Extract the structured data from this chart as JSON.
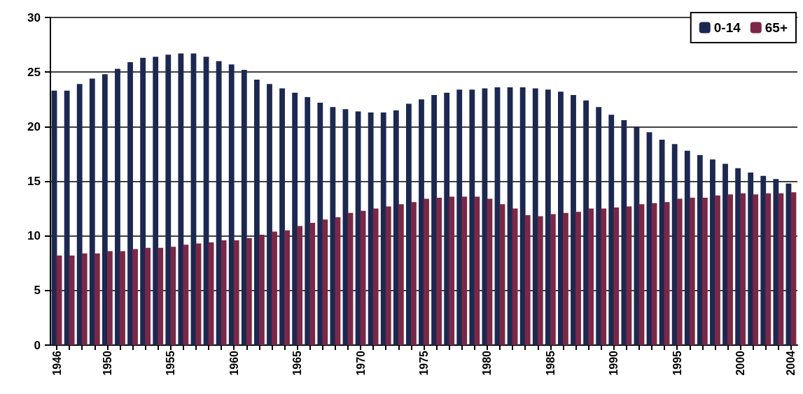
{
  "chart_data": {
    "type": "bar",
    "categories": [
      "1946",
      null,
      null,
      null,
      "1950",
      null,
      null,
      null,
      null,
      "1955",
      null,
      null,
      null,
      null,
      "1960",
      null,
      null,
      null,
      null,
      "1965",
      null,
      null,
      null,
      null,
      "1970",
      null,
      null,
      null,
      null,
      "1975",
      null,
      null,
      null,
      null,
      "1980",
      null,
      null,
      null,
      null,
      "1985",
      null,
      null,
      null,
      null,
      "1990",
      null,
      null,
      null,
      null,
      "1995",
      null,
      null,
      null,
      null,
      "2000",
      null,
      null,
      null,
      "2004"
    ],
    "series": [
      {
        "name": "0-14",
        "color": "#1c2850",
        "values": [
          23.3,
          23.3,
          23.9,
          24.4,
          24.8,
          25.3,
          25.9,
          26.3,
          26.4,
          26.6,
          26.7,
          26.7,
          26.4,
          26.0,
          25.7,
          25.2,
          24.3,
          23.9,
          23.5,
          23.1,
          22.7,
          22.2,
          21.8,
          21.6,
          21.4,
          21.3,
          21.3,
          21.5,
          22.1,
          22.5,
          22.9,
          23.1,
          23.4,
          23.4,
          23.5,
          23.6,
          23.6,
          23.6,
          23.5,
          23.4,
          23.2,
          22.9,
          22.4,
          21.8,
          21.1,
          20.6,
          20.0,
          19.5,
          18.8,
          18.4,
          17.8,
          17.4,
          17.0,
          16.6,
          16.2,
          15.8,
          15.5,
          15.2,
          14.8
        ]
      },
      {
        "name": "65+",
        "color": "#7a2848",
        "values": [
          8.2,
          8.2,
          8.4,
          8.4,
          8.6,
          8.6,
          8.8,
          8.9,
          8.9,
          9.0,
          9.2,
          9.3,
          9.4,
          9.6,
          9.6,
          9.8,
          10.1,
          10.4,
          10.5,
          10.9,
          11.2,
          11.5,
          11.7,
          12.1,
          12.3,
          12.5,
          12.7,
          12.9,
          13.1,
          13.4,
          13.5,
          13.6,
          13.6,
          13.6,
          13.4,
          12.9,
          12.5,
          11.9,
          11.8,
          12.0,
          12.1,
          12.2,
          12.5,
          12.5,
          12.6,
          12.7,
          12.9,
          13.0,
          13.1,
          13.4,
          13.5,
          13.5,
          13.7,
          13.8,
          13.9,
          13.8,
          13.9,
          13.9,
          14.0
        ]
      }
    ],
    "ylim": [
      0,
      30
    ],
    "yticks": [
      0,
      5,
      10,
      15,
      20,
      25,
      30
    ],
    "grid": "y",
    "legend": "top right"
  }
}
